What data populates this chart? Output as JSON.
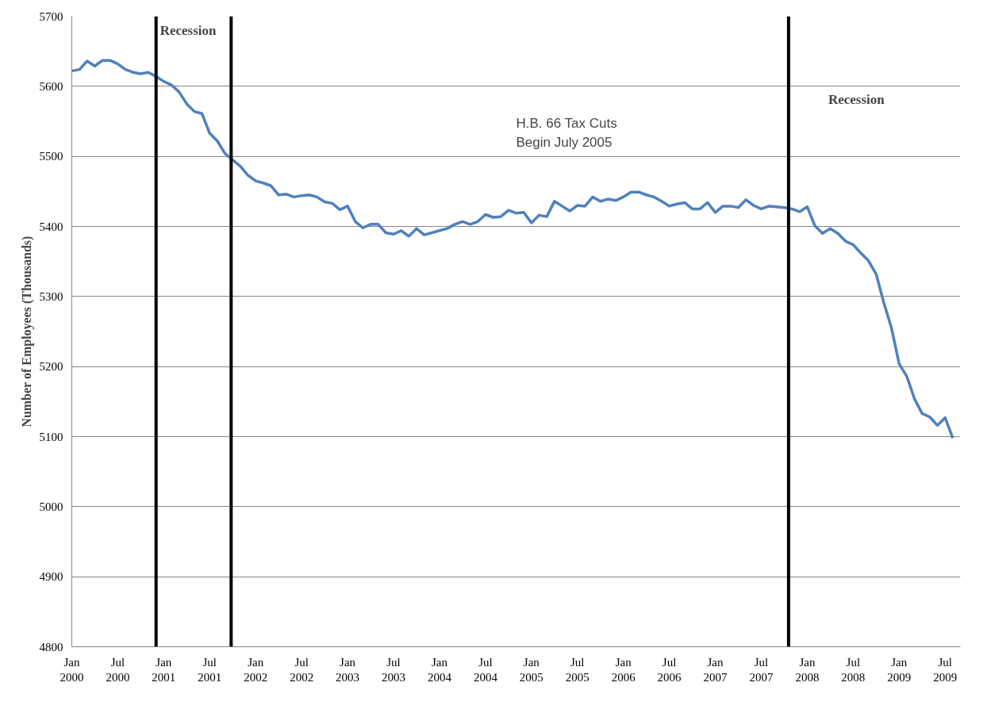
{
  "chart_data": {
    "type": "line",
    "ylabel": "Number of Employees (Thousands)",
    "x": [
      "2000-01",
      "2000-02",
      "2000-03",
      "2000-04",
      "2000-05",
      "2000-06",
      "2000-07",
      "2000-08",
      "2000-09",
      "2000-10",
      "2000-11",
      "2000-12",
      "2001-01",
      "2001-02",
      "2001-03",
      "2001-04",
      "2001-05",
      "2001-06",
      "2001-07",
      "2001-08",
      "2001-09",
      "2001-10",
      "2001-11",
      "2001-12",
      "2002-01",
      "2002-02",
      "2002-03",
      "2002-04",
      "2002-05",
      "2002-06",
      "2002-07",
      "2002-08",
      "2002-09",
      "2002-10",
      "2002-11",
      "2002-12",
      "2003-01",
      "2003-02",
      "2003-03",
      "2003-04",
      "2003-05",
      "2003-06",
      "2003-07",
      "2003-08",
      "2003-09",
      "2003-10",
      "2003-11",
      "2003-12",
      "2004-01",
      "2004-02",
      "2004-03",
      "2004-04",
      "2004-05",
      "2004-06",
      "2004-07",
      "2004-08",
      "2004-09",
      "2004-10",
      "2004-11",
      "2004-12",
      "2005-01",
      "2005-02",
      "2005-03",
      "2005-04",
      "2005-05",
      "2005-06",
      "2005-07",
      "2005-08",
      "2005-09",
      "2005-10",
      "2005-11",
      "2005-12",
      "2006-01",
      "2006-02",
      "2006-03",
      "2006-04",
      "2006-05",
      "2006-06",
      "2006-07",
      "2006-08",
      "2006-09",
      "2006-10",
      "2006-11",
      "2006-12",
      "2007-01",
      "2007-02",
      "2007-03",
      "2007-04",
      "2007-05",
      "2007-06",
      "2007-07",
      "2007-08",
      "2007-09",
      "2007-10",
      "2007-11",
      "2007-12",
      "2008-01",
      "2008-02",
      "2008-03",
      "2008-04",
      "2008-05",
      "2008-06",
      "2008-07",
      "2008-08",
      "2008-09",
      "2008-10",
      "2008-11",
      "2008-12",
      "2009-01",
      "2009-02",
      "2009-03",
      "2009-04",
      "2009-05",
      "2009-06",
      "2009-07",
      "2009-08"
    ],
    "series": [
      {
        "color": "#4f81bd",
        "values": [
          5622,
          5624,
          5636,
          5629,
          5637,
          5637,
          5632,
          5624,
          5620,
          5618,
          5620,
          5614,
          5607,
          5602,
          5592,
          5575,
          5564,
          5561,
          5533,
          5522,
          5504,
          5495,
          5486,
          5473,
          5465,
          5462,
          5458,
          5445,
          5446,
          5442,
          5444,
          5445,
          5442,
          5435,
          5433,
          5424,
          5429,
          5407,
          5398,
          5403,
          5403,
          5391,
          5389,
          5394,
          5386,
          5397,
          5388,
          5391,
          5394,
          5397,
          5403,
          5407,
          5403,
          5407,
          5417,
          5413,
          5414,
          5423,
          5419,
          5420,
          5405,
          5416,
          5414,
          5436,
          5429,
          5422,
          5430,
          5429,
          5442,
          5436,
          5439,
          5437,
          5442,
          5449,
          5449,
          5445,
          5442,
          5436,
          5429,
          5432,
          5434,
          5425,
          5425,
          5434,
          5420,
          5429,
          5429,
          5427,
          5438,
          5430,
          5425,
          5429,
          5428,
          5427,
          5425,
          5421,
          5428,
          5401,
          5390,
          5397,
          5390,
          5379,
          5374,
          5362,
          5351,
          5332,
          5291,
          5255,
          5204,
          5186,
          5154,
          5133,
          5128,
          5116,
          5127,
          5098
        ]
      }
    ],
    "xlim": [
      "2000-01",
      "2009-09"
    ],
    "xticks": [
      {
        "value": "2000-01",
        "label": "Jan\n2000"
      },
      {
        "value": "2000-07",
        "label": "Jul\n2000"
      },
      {
        "value": "2001-01",
        "label": "Jan\n2001"
      },
      {
        "value": "2001-07",
        "label": "Jul\n2001"
      },
      {
        "value": "2002-01",
        "label": "Jan\n2002"
      },
      {
        "value": "2002-07",
        "label": "Jul\n2002"
      },
      {
        "value": "2003-01",
        "label": "Jan\n2003"
      },
      {
        "value": "2003-07",
        "label": "Jul\n2003"
      },
      {
        "value": "2004-01",
        "label": "Jan\n2004"
      },
      {
        "value": "2004-07",
        "label": "Jul\n2004"
      },
      {
        "value": "2005-01",
        "label": "Jan\n2005"
      },
      {
        "value": "2005-07",
        "label": "Jul\n2005"
      },
      {
        "value": "2006-01",
        "label": "Jan\n2006"
      },
      {
        "value": "2006-07",
        "label": "Jul\n2006"
      },
      {
        "value": "2007-01",
        "label": "Jan\n2007"
      },
      {
        "value": "2007-07",
        "label": "Jul\n2007"
      },
      {
        "value": "2008-01",
        "label": "Jan\n2008"
      },
      {
        "value": "2008-07",
        "label": "Jul\n2008"
      },
      {
        "value": "2009-01",
        "label": "Jan\n2009"
      },
      {
        "value": "2009-07",
        "label": "Jul\n2009"
      }
    ],
    "ylim": [
      4800,
      5700
    ],
    "yticks": [
      4800,
      4900,
      5000,
      5100,
      5200,
      5300,
      5400,
      5500,
      5600,
      5700
    ],
    "grid": "y",
    "marker": "none",
    "line_style": "solid",
    "ref_lines": [
      {
        "axis": "x",
        "value": "2000-12",
        "color": "#000000",
        "label": "Recession"
      },
      {
        "axis": "x",
        "value": "2001-09-25",
        "color": "#000000"
      },
      {
        "axis": "x",
        "value": "2007-10-18",
        "color": "#000000",
        "label": "Recession"
      }
    ],
    "annotations": [
      "H.B. 66 Tax Cuts\nBegin July 2005"
    ]
  }
}
